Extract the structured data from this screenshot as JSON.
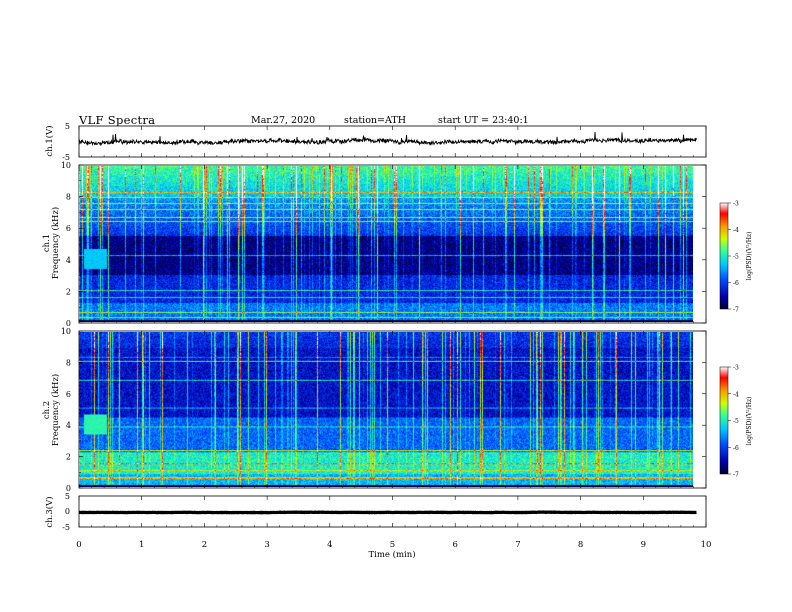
{
  "header": {
    "title": "VLF Spectra",
    "date": "Mar.27, 2020",
    "station": "station=ATH",
    "start_ut": "start UT =  23:40:1"
  },
  "chart_data": [
    {
      "type": "line",
      "panel": "ch1-waveform",
      "ylabel": "ch.1(V)",
      "ylim": [
        -5,
        5
      ],
      "ytick_labels": [
        "5",
        "-5"
      ],
      "x_unit": "min",
      "xlim": [
        0,
        10
      ],
      "data_extent_min": 9.85,
      "level_v": 0,
      "noise_amplitude_v": 1.2
    },
    {
      "type": "heatmap",
      "panel": "ch1-spectrogram",
      "ylabel": "Frequency (kHz)",
      "channel_label": "ch.1",
      "ylim": [
        0,
        10
      ],
      "ytick_labels": [
        "0",
        "2",
        "4",
        "6",
        "8",
        "10"
      ],
      "xlim": [
        0,
        10
      ],
      "data_extent_min": 9.85,
      "colorbar": {
        "label": "log(PSD)(V²/Hz)",
        "range": [
          -7,
          -3
        ],
        "tick_labels": [
          "-3",
          "-4",
          "-5",
          "-6",
          "-7"
        ]
      },
      "bright_band_khz": [
        8.0,
        10.0
      ],
      "quiet_band_khz": [
        3.0,
        5.5
      ]
    },
    {
      "type": "heatmap",
      "panel": "ch2-spectrogram",
      "ylabel": "Frequency (kHz)",
      "channel_label": "ch.2",
      "ylim": [
        0,
        10
      ],
      "ytick_labels": [
        "0",
        "2",
        "4",
        "6",
        "8",
        "10"
      ],
      "xlim": [
        0,
        10
      ],
      "data_extent_min": 9.85,
      "colorbar": {
        "label": "log(PSD)(V²/Hz)",
        "range": [
          -7,
          -3
        ],
        "tick_labels": [
          "-3",
          "-4",
          "-5",
          "-6",
          "-7"
        ]
      },
      "bright_band_khz": [
        0.8,
        2.2
      ],
      "quiet_band_khz": [
        4.5,
        9.0
      ]
    },
    {
      "type": "line",
      "panel": "ch3-waveform",
      "ylabel": "ch.3(V)",
      "ylim": [
        -5,
        5
      ],
      "ytick_labels": [
        "5",
        "0",
        "-5"
      ],
      "xlim": [
        0,
        10
      ],
      "data_extent_min": 9.85,
      "level_v": -0.3,
      "noise_amplitude_v": 0.1
    }
  ],
  "x_axis": {
    "label": "Time (min)",
    "tick_labels": [
      "0",
      "1",
      "2",
      "3",
      "4",
      "5",
      "6",
      "7",
      "8",
      "9",
      "10"
    ]
  },
  "colors": {
    "line": "#000000",
    "colormap": [
      "#000033",
      "#0000b0",
      "#0050ff",
      "#00c8ff",
      "#33ff99",
      "#ccff00",
      "#ff9900",
      "#ff0000",
      "#ffffff"
    ]
  }
}
